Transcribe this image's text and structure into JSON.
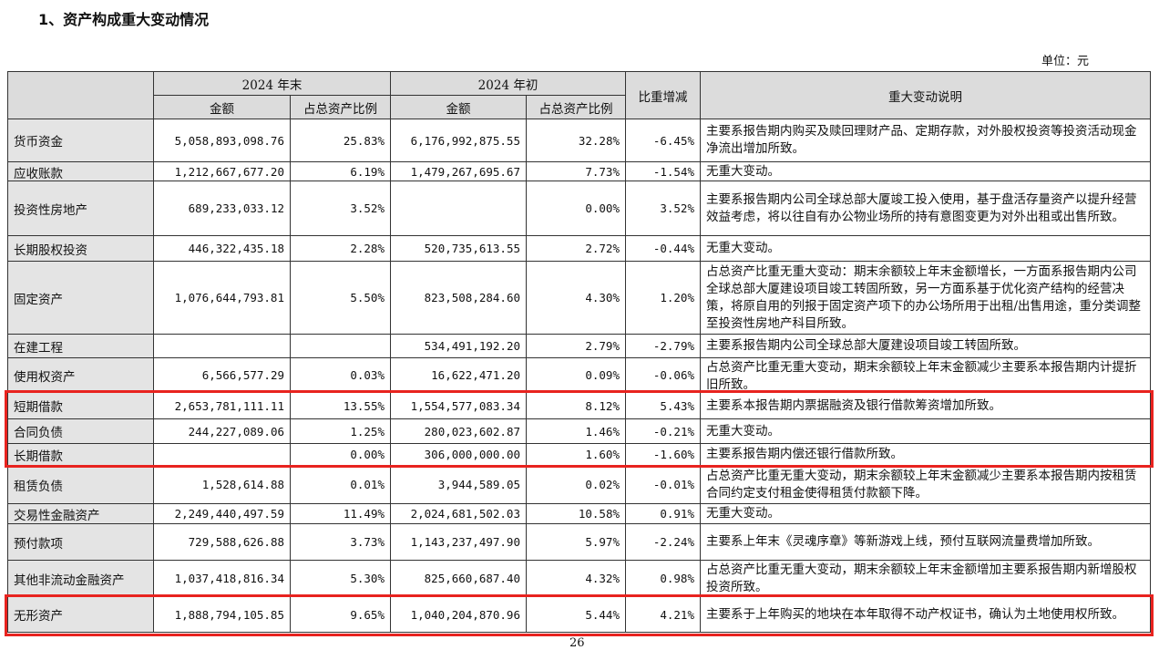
{
  "title": "1、资产构成重大变动情况",
  "unit": "单位：元",
  "page_number": "26",
  "highlight_color": "#e8231f",
  "headers": {
    "end_2024": "2024 年末",
    "start_2024": "2024 年初",
    "amount": "金额",
    "ratio": "占总资产比例",
    "change": "比重增减",
    "explanation": "重大变动说明"
  },
  "rows": [
    {
      "item": "货币资金",
      "end_amount": "5,058,893,098.76",
      "end_ratio": "25.83%",
      "start_amount": "6,176,992,875.55",
      "start_ratio": "32.28%",
      "change": "-6.45%",
      "explanation": "主要系报告期内购买及赎回理财产品、定期存款，对外股权投资等投资活动现金净流出增加所致。",
      "highlighted": false
    },
    {
      "item": "应收账款",
      "end_amount": "1,212,667,677.20",
      "end_ratio": "6.19%",
      "start_amount": "1,479,267,695.67",
      "start_ratio": "7.73%",
      "change": "-1.54%",
      "explanation": "无重大变动。",
      "highlighted": false
    },
    {
      "item": "投资性房地产",
      "end_amount": "689,233,033.12",
      "end_ratio": "3.52%",
      "start_amount": "",
      "start_ratio": "0.00%",
      "change": "3.52%",
      "explanation": "主要系报告期内公司全球总部大厦竣工投入使用，基于盘活存量资产以提升经营效益考虑，将以往自有办公物业场所的持有意图变更为对外出租或出售所致。",
      "highlighted": false
    },
    {
      "item": "长期股权投资",
      "end_amount": "446,322,435.18",
      "end_ratio": "2.28%",
      "start_amount": "520,735,613.55",
      "start_ratio": "2.72%",
      "change": "-0.44%",
      "explanation": "无重大变动。",
      "highlighted": false
    },
    {
      "item": "固定资产",
      "end_amount": "1,076,644,793.81",
      "end_ratio": "5.50%",
      "start_amount": "823,508,284.60",
      "start_ratio": "4.30%",
      "change": "1.20%",
      "explanation": "占总资产比重无重大变动：期末余额较上年末金额增长，一方面系报告期内公司全球总部大厦建设项目竣工转固所致，另一方面系基于优化资产结构的经营决策，将原自用的列报于固定资产项下的办公场所用于出租/出售用途，重分类调整至投资性房地产科目所致。",
      "highlighted": false
    },
    {
      "item": "在建工程",
      "end_amount": "",
      "end_ratio": "",
      "start_amount": "534,491,192.20",
      "start_ratio": "2.79%",
      "change": "-2.79%",
      "explanation": "主要系报告期内公司全球总部大厦建设项目竣工转固所致。",
      "highlighted": false
    },
    {
      "item": "使用权资产",
      "end_amount": "6,566,577.29",
      "end_ratio": "0.03%",
      "start_amount": "16,622,471.20",
      "start_ratio": "0.09%",
      "change": "-0.06%",
      "explanation": "占总资产比重无重大变动，期末余额较上年末金额减少主要系本报告期内计提折旧所致。",
      "highlighted": false
    },
    {
      "item": "短期借款",
      "end_amount": "2,653,781,111.11",
      "end_ratio": "13.55%",
      "start_amount": "1,554,577,083.34",
      "start_ratio": "8.12%",
      "change": "5.43%",
      "explanation": "主要系本报告期内票据融资及银行借款筹资增加所致。",
      "highlighted": true
    },
    {
      "item": "合同负债",
      "end_amount": "244,227,089.06",
      "end_ratio": "1.25%",
      "start_amount": "280,023,602.87",
      "start_ratio": "1.46%",
      "change": "-0.21%",
      "explanation": "无重大变动。",
      "highlighted": true
    },
    {
      "item": "长期借款",
      "end_amount": "",
      "end_ratio": "0.00%",
      "start_amount": "306,000,000.00",
      "start_ratio": "1.60%",
      "change": "-1.60%",
      "explanation": "主要系报告期内偿还银行借款所致。",
      "highlighted": true
    },
    {
      "item": "租赁负债",
      "end_amount": "1,528,614.88",
      "end_ratio": "0.01%",
      "start_amount": "3,944,589.05",
      "start_ratio": "0.02%",
      "change": "-0.01%",
      "explanation": "占总资产比重无重大变动，期末余额较上年末金额减少主要系本报告期内按租赁合同约定支付租金使得租赁付款额下降。",
      "highlighted": false
    },
    {
      "item": "交易性金融资产",
      "end_amount": "2,249,440,497.59",
      "end_ratio": "11.49%",
      "start_amount": "2,024,681,502.03",
      "start_ratio": "10.58%",
      "change": "0.91%",
      "explanation": "无重大变动。",
      "highlighted": false
    },
    {
      "item": "预付款项",
      "end_amount": "729,588,626.88",
      "end_ratio": "3.73%",
      "start_amount": "1,143,237,497.90",
      "start_ratio": "5.97%",
      "change": "-2.24%",
      "explanation": "主要系上年末《灵魂序章》等新游戏上线，预付互联网流量费增加所致。",
      "highlighted": false
    },
    {
      "item": "其他非流动金融资产",
      "end_amount": "1,037,418,816.34",
      "end_ratio": "5.30%",
      "start_amount": "825,660,687.40",
      "start_ratio": "4.32%",
      "change": "0.98%",
      "explanation": "占总资产比重无重大变动，期末余额较上年末金额增加主要系报告期内新增股权投资所致。",
      "highlighted": false
    },
    {
      "item": "无形资产",
      "end_amount": "1,888,794,105.85",
      "end_ratio": "9.65%",
      "start_amount": "1,040,204,870.96",
      "start_ratio": "5.44%",
      "change": "4.21%",
      "explanation": "主要系于上年购买的地块在本年取得不动产权证书，确认为土地使用权所致。",
      "highlighted": true
    }
  ]
}
